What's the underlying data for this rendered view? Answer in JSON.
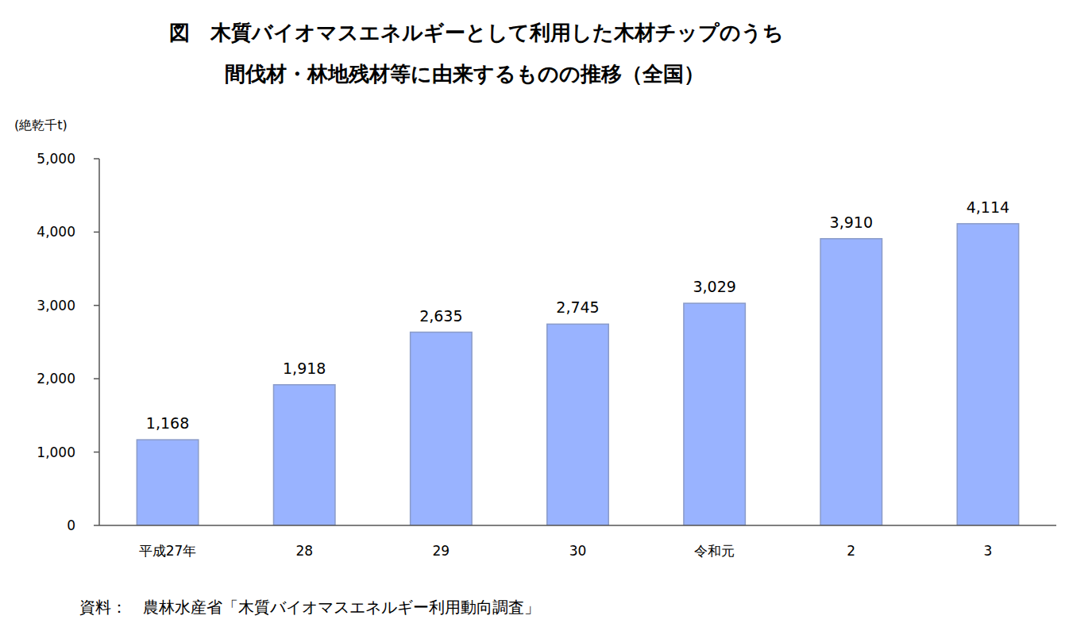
{
  "chart_data": {
    "type": "bar",
    "title": [
      "図　木質バイオマスエネルギーとして利用した木材チップのうち",
      "間伐材・林地残材等に由来するものの推移（全国）"
    ],
    "y_label": "(絶乾千t)",
    "categories": [
      "平成27年",
      "28",
      "29",
      "30",
      "令和元",
      "2",
      "3"
    ],
    "values": [
      1168,
      1918,
      2635,
      2745,
      3029,
      3910,
      4114
    ],
    "value_labels": [
      "1,168",
      "1,918",
      "2,635",
      "2,745",
      "3,029",
      "3,910",
      "4,114"
    ],
    "color": "#99b3ff",
    "ylim": [
      0,
      5000
    ],
    "yticks": [
      0,
      {
        "value": 1000,
        "label": "1,000"
      },
      {
        "value": 2000,
        "label": "2,000"
      },
      {
        "value": 3000,
        "label": "3,000"
      },
      {
        "value": 4000,
        "label": "4,000"
      },
      {
        "value": 5000,
        "label": "5,000"
      }
    ],
    "grid": false,
    "data_labels": true,
    "annotations": [
      "資料：　農林水産省「木質バイオマスエネルギー利用動向調査」"
    ]
  }
}
